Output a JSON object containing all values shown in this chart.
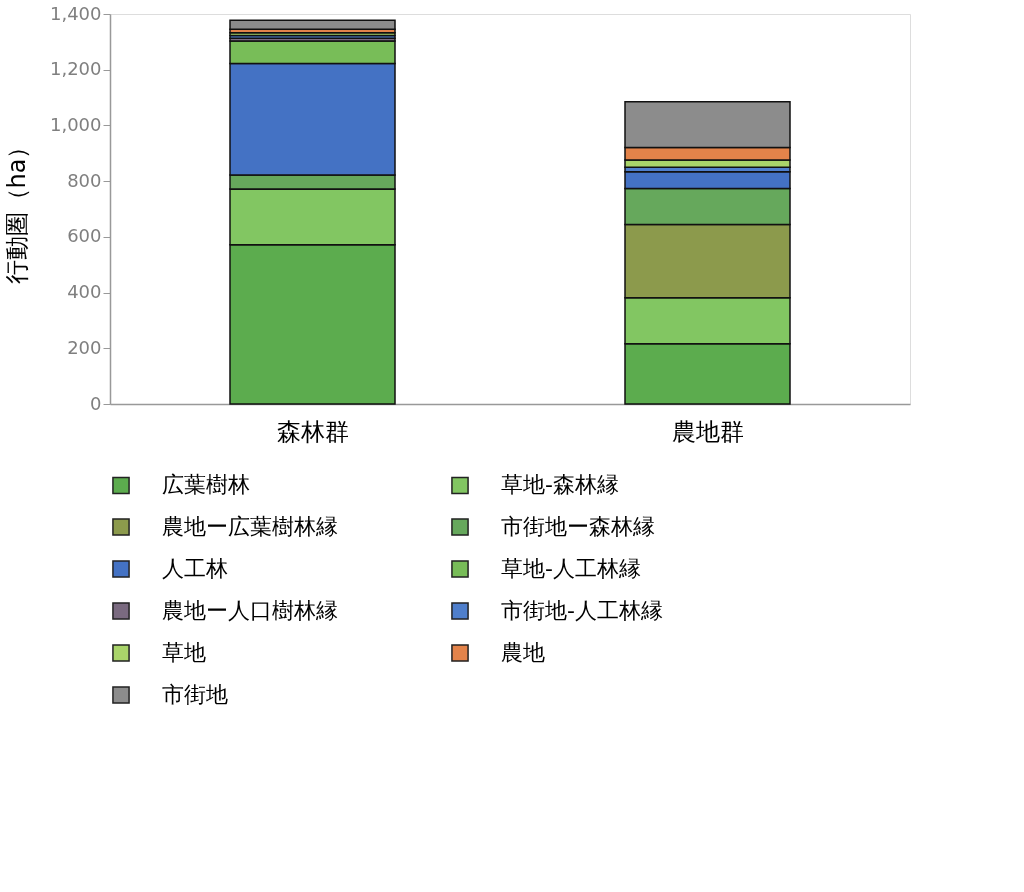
{
  "chart_data": {
    "type": "bar",
    "stacked": true,
    "ylabel": "行動圏（ha）",
    "categories": [
      "森林群",
      "農地群"
    ],
    "series": [
      {
        "name": "広葉樹林",
        "color": "#5cac4e",
        "values": [
          572,
          216
        ]
      },
      {
        "name": "草地-森林縁",
        "color": "#82c662",
        "values": [
          200,
          165
        ]
      },
      {
        "name": "農地ー広葉樹林縁",
        "color": "#8c9a4c",
        "values": [
          0,
          263
        ]
      },
      {
        "name": "市街地ー森林縁",
        "color": "#66a85c",
        "values": [
          50,
          130
        ]
      },
      {
        "name": "人工林",
        "color": "#4472c4",
        "values": [
          400,
          60
        ]
      },
      {
        "name": "草地-人工林縁",
        "color": "#78bd58",
        "values": [
          81,
          null
        ]
      },
      {
        "name": "農地ー人口樹林縁",
        "color": "#7a6a80",
        "values": [
          10,
          null
        ]
      },
      {
        "name": "市街地-人工林縁",
        "color": "#4f7fcc",
        "values": [
          10,
          16
        ]
      },
      {
        "name": "草地",
        "color": "#a9d46a",
        "values": [
          10,
          26
        ]
      },
      {
        "name": "農地",
        "color": "#e3834a",
        "values": [
          12,
          45
        ]
      },
      {
        "name": "市街地",
        "color": "#8c8c8c",
        "values": [
          33,
          164
        ]
      }
    ],
    "ylim": [
      0,
      1400
    ],
    "yticks": [
      0,
      200,
      400,
      600,
      800,
      {
        "value": 1000,
        "label": "1,000"
      },
      {
        "value": 1200,
        "label": "1,200"
      },
      {
        "value": 1400,
        "label": "1,400"
      }
    ],
    "grid": false,
    "legend": "bottom"
  }
}
